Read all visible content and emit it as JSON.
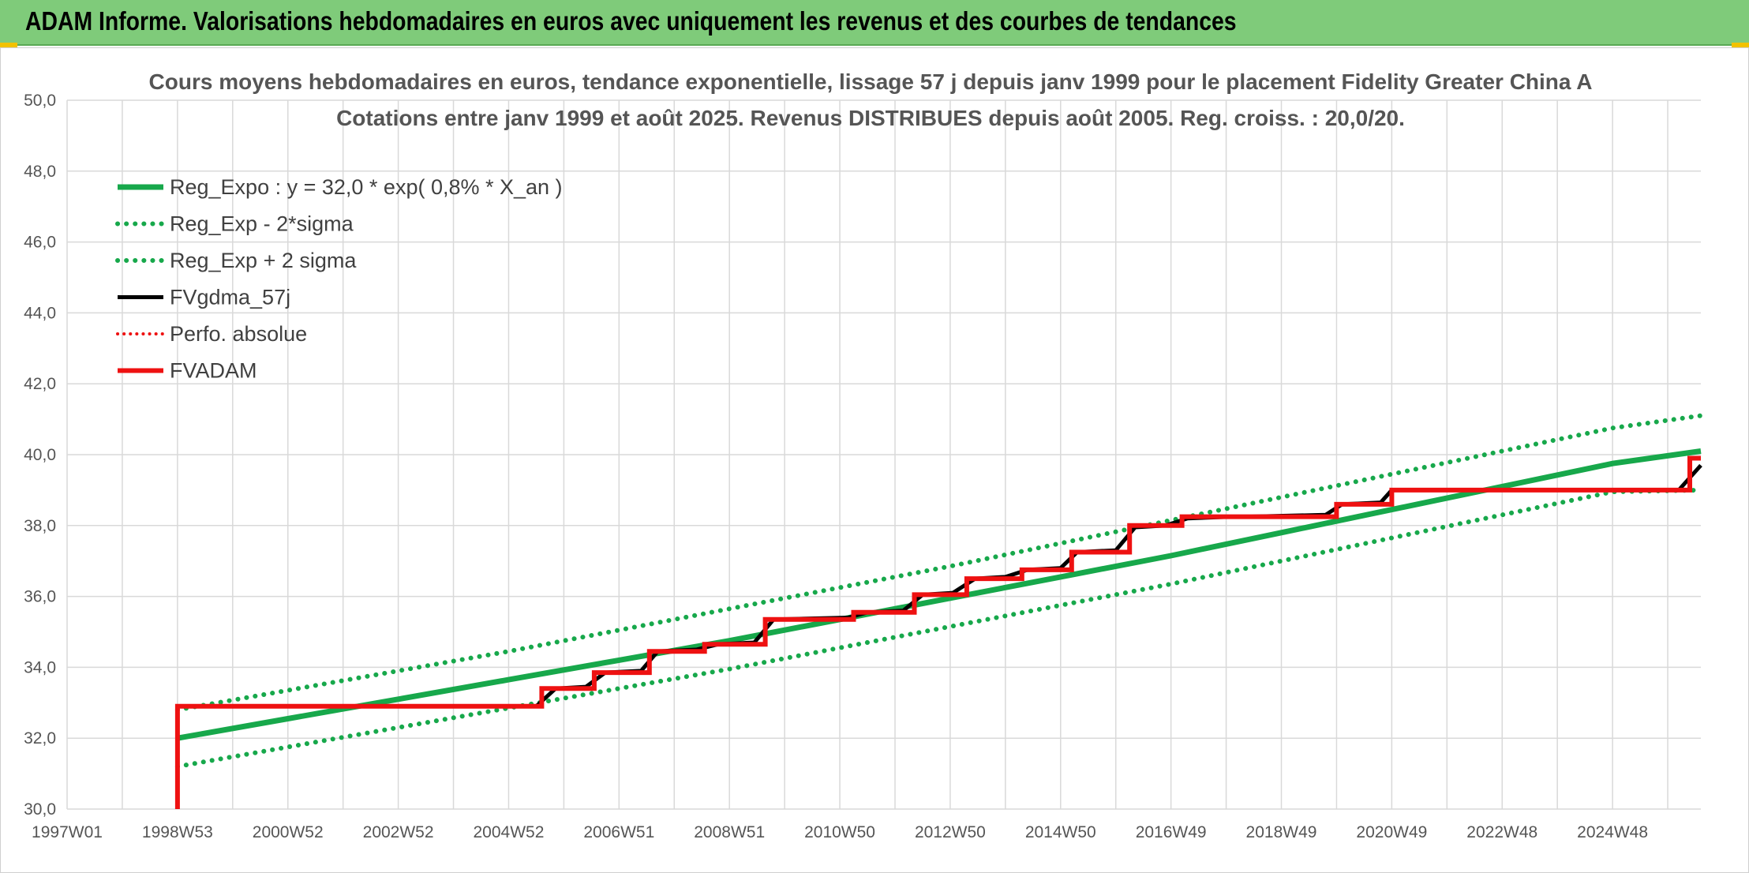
{
  "page": {
    "banner_title": "ADAM Informe. Valorisations hebdomadaires en euros avec uniquement les revenus et des courbes de tendances"
  },
  "colors": {
    "banner": "#7fcb7a",
    "reg_green": "#17a84b",
    "price_red": "#ee1111",
    "black": "#000000",
    "grid": "#d9d9d9"
  },
  "chart_data": {
    "type": "line",
    "title": "Cours moyens hebdomadaires en euros, tendance exponentielle, lissage 57 j depuis janv 1999 pour le placement Fidelity Greater China A",
    "subtitle": "Cotations entre janv 1999 et août 2025. Revenus DISTRIBUES depuis août 2005. Reg. croiss. : 20,0/20.",
    "xlabel": "",
    "ylabel": "",
    "x_axis": {
      "type": "year",
      "range": [
        1997.0,
        2026.6
      ],
      "tick_labels": [
        "1997W01",
        "1998W53",
        "2000W52",
        "2002W52",
        "2004W52",
        "2006W51",
        "2008W51",
        "2010W50",
        "2012W50",
        "2014W50",
        "2016W49",
        "2018W49",
        "2020W49",
        "2022W48",
        "2024W48"
      ],
      "tick_positions": [
        1997.0,
        1999.0,
        2001.0,
        2003.0,
        2005.0,
        2007.0,
        2009.0,
        2011.0,
        2013.0,
        2015.0,
        2017.0,
        2019.0,
        2021.0,
        2023.0,
        2025.0
      ]
    },
    "y_axis": {
      "range": [
        30,
        50
      ],
      "tick_labels": [
        "30,0",
        "32,0",
        "34,0",
        "36,0",
        "38,0",
        "40,0",
        "42,0",
        "44,0",
        "46,0",
        "48,0",
        "50,0"
      ],
      "tick_values": [
        30,
        32,
        34,
        36,
        38,
        40,
        42,
        44,
        46,
        48,
        50
      ]
    },
    "grid": true,
    "legend": {
      "position": "top-left",
      "entries": [
        {
          "name": "Reg_Expo : y = 32,0 * exp( 0,8% *  X_an )",
          "color": "#17a84b",
          "style": "solid"
        },
        {
          "name": "Reg_Exp - 2*sigma",
          "color": "#17a84b",
          "style": "dotted"
        },
        {
          "name": "Reg_Exp + 2 sigma",
          "color": "#17a84b",
          "style": "dotted"
        },
        {
          "name": "FVgdma_57j",
          "color": "#000000",
          "style": "solid"
        },
        {
          "name": "Perfo. absolue",
          "color": "#ee1111",
          "style": "dotted"
        },
        {
          "name": "FVADAM",
          "color": "#ee1111",
          "style": "solid"
        }
      ]
    },
    "series": [
      {
        "name": "Reg_Expo : y = 32,0 * exp( 0,8% *  X_an )",
        "x": [
          1999.0,
          2001.0,
          2003.0,
          2005.0,
          2007.0,
          2009.0,
          2011.0,
          2013.0,
          2015.0,
          2017.0,
          2019.0,
          2021.0,
          2023.0,
          2025.0,
          2026.6
        ],
        "values": [
          32.0,
          32.55,
          33.1,
          33.65,
          34.2,
          34.75,
          35.35,
          35.95,
          36.55,
          37.15,
          37.8,
          38.45,
          39.1,
          39.75,
          40.1
        ]
      },
      {
        "name": "Reg_Exp - 2*sigma",
        "x": [
          1999.0,
          2001.0,
          2003.0,
          2005.0,
          2007.0,
          2009.0,
          2011.0,
          2013.0,
          2015.0,
          2017.0,
          2019.0,
          2021.0,
          2023.0,
          2025.0,
          2026.6
        ],
        "values": [
          31.2,
          31.75,
          32.3,
          32.85,
          33.4,
          33.95,
          34.55,
          35.15,
          35.75,
          36.35,
          37.0,
          37.65,
          38.3,
          38.95,
          39.0
        ]
      },
      {
        "name": "Reg_Exp + 2 sigma",
        "x": [
          1999.0,
          2001.0,
          2003.0,
          2005.0,
          2007.0,
          2009.0,
          2011.0,
          2013.0,
          2015.0,
          2017.0,
          2019.0,
          2021.0,
          2023.0,
          2025.0,
          2026.6
        ],
        "values": [
          32.8,
          33.35,
          33.9,
          34.45,
          35.05,
          35.65,
          36.25,
          36.85,
          37.5,
          38.15,
          38.8,
          39.45,
          40.1,
          40.75,
          41.1
        ]
      },
      {
        "name": "FVgdma_57j",
        "x": [
          2005.5,
          2005.85,
          2006.4,
          2006.75,
          2007.4,
          2007.7,
          2008.4,
          2008.8,
          2009.45,
          2009.8,
          2011.15,
          2011.5,
          2012.15,
          2012.5,
          2013.05,
          2013.45,
          2014.0,
          2014.4,
          2015.0,
          2015.3,
          2016.0,
          2016.35,
          2016.9,
          2017.3,
          2018.1,
          2018.35,
          2019.8,
          2020.1,
          2020.8,
          2021.0,
          2026.2,
          2026.6
        ],
        "values": [
          32.9,
          33.4,
          33.45,
          33.85,
          33.9,
          34.45,
          34.5,
          34.65,
          34.7,
          35.35,
          35.4,
          35.55,
          35.6,
          36.05,
          36.1,
          36.5,
          36.55,
          36.75,
          36.8,
          37.25,
          37.3,
          37.95,
          38.0,
          38.2,
          38.25,
          38.25,
          38.3,
          38.6,
          38.65,
          39.0,
          39.0,
          39.7
        ]
      },
      {
        "name": "Perfo. absolue",
        "x": [],
        "values": []
      },
      {
        "name": "FVADAM",
        "x": [
          1999.0,
          1999.0,
          2005.6,
          2005.6,
          2006.55,
          2006.55,
          2007.55,
          2007.55,
          2008.55,
          2008.55,
          2009.65,
          2009.65,
          2011.25,
          2011.25,
          2012.35,
          2012.35,
          2013.3,
          2013.3,
          2014.3,
          2014.3,
          2015.2,
          2015.2,
          2016.25,
          2016.25,
          2017.2,
          2017.2,
          2018.35,
          2018.35,
          2020.0,
          2020.0,
          2021.0,
          2021.0,
          2026.4,
          2026.4,
          2026.6
        ],
        "values": [
          30.0,
          32.9,
          32.9,
          33.4,
          33.4,
          33.85,
          33.85,
          34.45,
          34.45,
          34.65,
          34.65,
          35.35,
          35.35,
          35.55,
          35.55,
          36.05,
          36.05,
          36.5,
          36.5,
          36.75,
          36.75,
          37.25,
          37.25,
          38.0,
          38.0,
          38.25,
          38.25,
          38.25,
          38.25,
          38.6,
          38.6,
          39.0,
          39.0,
          39.9,
          39.9
        ]
      }
    ]
  }
}
